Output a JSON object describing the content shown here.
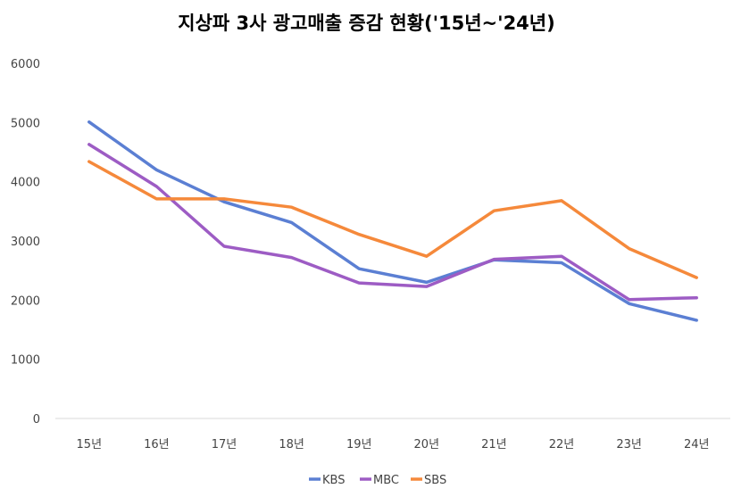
{
  "chart_data": {
    "type": "line",
    "title": "지상파 3사 광고매출 증감 현황('15년~'24년)",
    "xlabel": "",
    "ylabel": "",
    "categories": [
      "15년",
      "16년",
      "17년",
      "18년",
      "19년",
      "20년",
      "21년",
      "22년",
      "23년",
      "24년"
    ],
    "y_ticks": [
      "0",
      "1000",
      "2000",
      "3000",
      "4000",
      "5000",
      "6000"
    ],
    "ylim": [
      0,
      6000
    ],
    "grid": false,
    "legend_position": "bottom",
    "series": [
      {
        "name": "KBS",
        "color": "#5B7FD3",
        "values": [
          5010,
          4200,
          3660,
          3310,
          2530,
          2300,
          2680,
          2630,
          1940,
          1660
        ]
      },
      {
        "name": "MBC",
        "color": "#9D5CC4",
        "values": [
          4630,
          3920,
          2910,
          2720,
          2290,
          2230,
          2690,
          2740,
          2010,
          2040
        ]
      },
      {
        "name": "SBS",
        "color": "#F5893B",
        "values": [
          4340,
          3710,
          3710,
          3570,
          3110,
          2740,
          3510,
          3680,
          2870,
          2380
        ]
      }
    ]
  }
}
